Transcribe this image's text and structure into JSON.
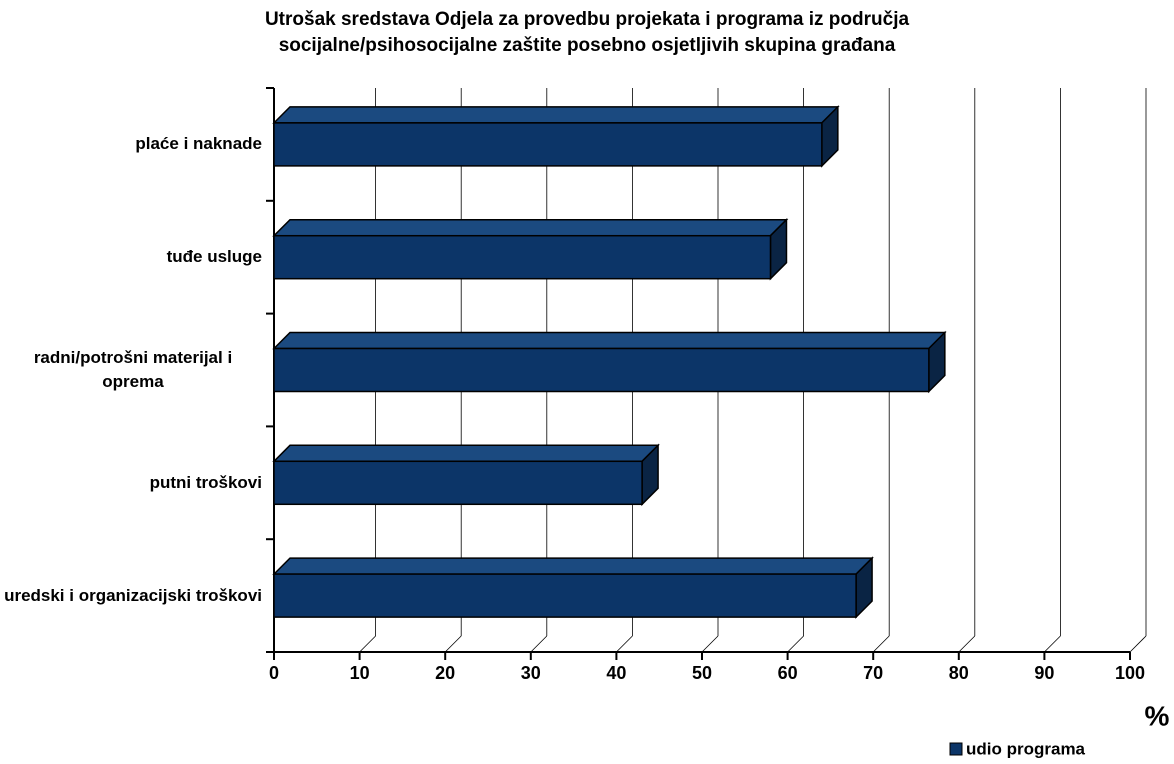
{
  "chart_data": {
    "type": "bar3d_horizontal",
    "title": [
      "Utrošak sredstava Odjela za provedbu projekata i programa iz područja",
      "socijalne/psihosocijalne zaštite posebno osjetljivih skupina građana"
    ],
    "categories": [
      "plaće i naknade",
      "tuđe usluge",
      "radni/potrošni materijal i oprema",
      "putni troškovi",
      "uredski i organizacijski troškovi"
    ],
    "series": [
      {
        "name": "udio programa",
        "color": "#0c3568",
        "values": [
          64,
          58,
          76.5,
          43,
          68
        ]
      }
    ],
    "xlim": [
      0,
      100
    ],
    "xticks": [
      0,
      10,
      20,
      30,
      40,
      50,
      60,
      70,
      80,
      90,
      100
    ],
    "xlabel": "%",
    "grid": true,
    "legend": "bottom-right"
  }
}
